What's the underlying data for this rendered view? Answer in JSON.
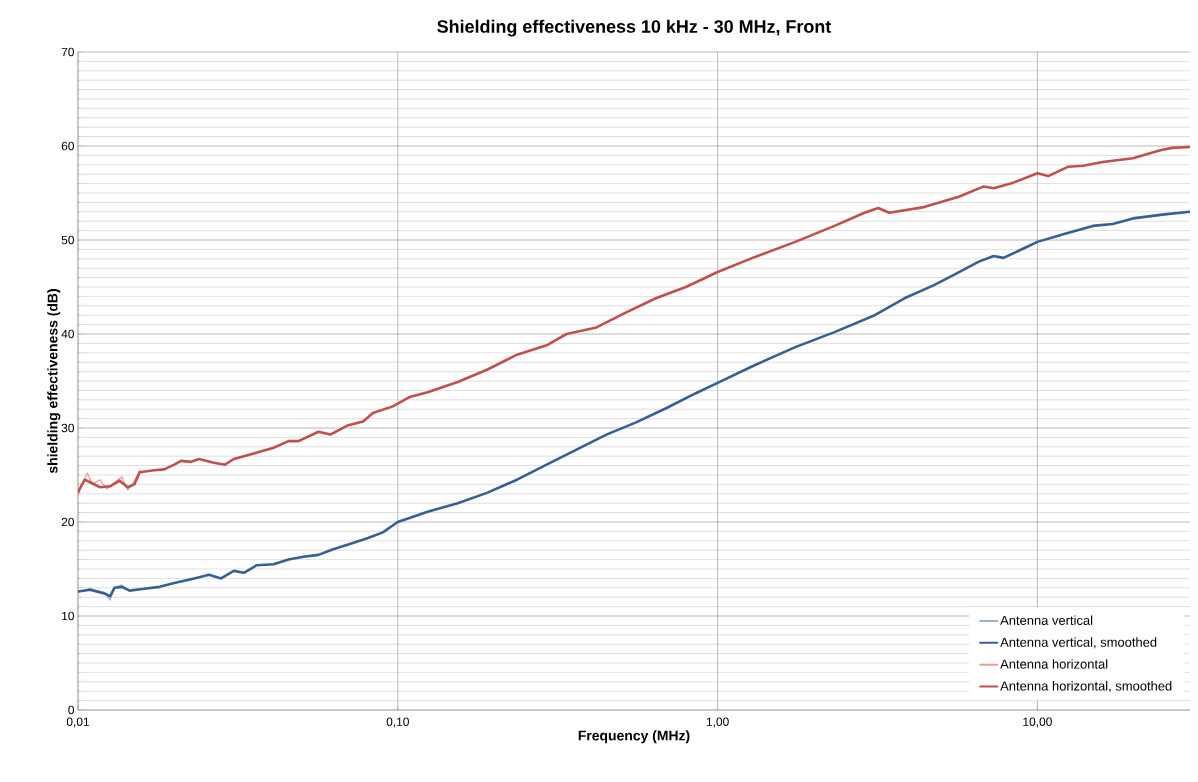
{
  "chart_data": {
    "type": "line",
    "title": "Shielding effectiveness 10 kHz - 30 MHz, Front",
    "xlabel": "Frequency (MHz)",
    "ylabel": "shielding effectiveness (dB)",
    "log": "x",
    "grid": true,
    "legend": "bottom right",
    "line_style": "solid",
    "marker": "none",
    "xlim": [
      0.01,
      30
    ],
    "ylim": [
      0,
      70
    ],
    "xticks": [
      {
        "value": 0.01,
        "label": "0,01"
      },
      {
        "value": 0.1,
        "label": "0,10"
      },
      {
        "value": 1,
        "label": "1,00"
      },
      {
        "value": 10,
        "label": "10,00"
      }
    ],
    "yticks": [
      0,
      10,
      20,
      30,
      40,
      50,
      60,
      70
    ],
    "series": [
      {
        "name": "Antenna vertical",
        "color": "#95b3d7",
        "x": [
          0.01,
          0.0109,
          0.0121,
          0.0126,
          0.013,
          0.0137,
          0.0145
        ],
        "values": [
          12.5,
          12.9,
          12.5,
          11.7,
          13.0,
          13.3,
          12.7
        ]
      },
      {
        "name": "Antenna vertical,  smoothed",
        "color": "#376092",
        "x": [
          0.01,
          0.0109,
          0.0121,
          0.0126,
          0.013,
          0.0137,
          0.0145,
          0.0161,
          0.018,
          0.02,
          0.0231,
          0.0257,
          0.028,
          0.0307,
          0.033,
          0.0362,
          0.0409,
          0.0455,
          0.0507,
          0.0565,
          0.0628,
          0.07,
          0.0807,
          0.0898,
          0.1,
          0.124,
          0.154,
          0.19,
          0.236,
          0.292,
          0.362,
          0.449,
          0.556,
          0.69,
          0.855,
          1.0,
          1.31,
          1.75,
          2.32,
          3.1,
          3.84,
          4.75,
          5.48,
          6.56,
          7.3,
          7.84,
          9.05,
          10,
          12.05,
          14.9,
          17.2,
          19.9,
          24.6,
          30
        ],
        "values": [
          12.6,
          12.8,
          12.4,
          12.1,
          13.0,
          13.1,
          12.7,
          12.9,
          13.1,
          13.5,
          14.0,
          14.4,
          14.0,
          14.8,
          14.6,
          15.4,
          15.5,
          16.0,
          16.3,
          16.5,
          17.1,
          17.6,
          18.3,
          18.9,
          20.0,
          21.1,
          22.0,
          23.1,
          24.5,
          26.1,
          27.7,
          29.3,
          30.6,
          32.1,
          33.7,
          34.8,
          36.7,
          38.6,
          40.2,
          42.0,
          43.8,
          45.2,
          46.3,
          47.7,
          48.3,
          48.1,
          49.1,
          49.8,
          50.6,
          51.5,
          51.7,
          52.3,
          52.7,
          53.0
        ]
      },
      {
        "name": "Antenna horizontal",
        "color": "#e6a0a0",
        "x": [
          0.01,
          0.0103,
          0.0107,
          0.0111,
          0.0117,
          0.0123,
          0.013,
          0.0137,
          0.0143,
          0.015,
          0.0156
        ],
        "values": [
          22.8,
          24.0,
          25.2,
          24.0,
          24.5,
          23.5,
          24.2,
          24.8,
          23.4,
          24.3,
          25.5
        ]
      },
      {
        "name": "Antenna horizontal, smoothed",
        "color": "#c0504d",
        "x": [
          0.01,
          0.0105,
          0.0111,
          0.0117,
          0.0126,
          0.0135,
          0.0143,
          0.015,
          0.0156,
          0.0173,
          0.0186,
          0.02,
          0.021,
          0.0226,
          0.0239,
          0.0266,
          0.0288,
          0.0307,
          0.0355,
          0.0409,
          0.0455,
          0.0489,
          0.0565,
          0.0615,
          0.07,
          0.0779,
          0.0836,
          0.0965,
          0.109,
          0.124,
          0.154,
          0.19,
          0.236,
          0.292,
          0.337,
          0.418,
          0.518,
          0.641,
          0.796,
          1.0,
          1.31,
          1.75,
          2.32,
          2.88,
          3.18,
          3.44,
          4.42,
          5.68,
          6.8,
          7.3,
          8.41,
          10,
          10.8,
          12.5,
          13.9,
          16.0,
          19.9,
          22.9,
          24.6,
          26.4,
          30
        ],
        "values": [
          23.2,
          24.5,
          24.1,
          23.7,
          23.8,
          24.4,
          23.7,
          24.0,
          25.3,
          25.5,
          25.6,
          26.1,
          26.5,
          26.4,
          26.7,
          26.3,
          26.1,
          26.7,
          27.3,
          27.9,
          28.6,
          28.6,
          29.6,
          29.3,
          30.3,
          30.7,
          31.6,
          32.3,
          33.3,
          33.8,
          34.9,
          36.2,
          37.8,
          38.8,
          40.0,
          40.7,
          42.3,
          43.8,
          45.0,
          46.6,
          48.2,
          49.8,
          51.5,
          52.9,
          53.4,
          52.9,
          53.5,
          54.6,
          55.7,
          55.5,
          56.1,
          57.1,
          56.8,
          57.8,
          57.9,
          58.3,
          58.7,
          59.3,
          59.6,
          59.8,
          59.9
        ]
      }
    ]
  }
}
